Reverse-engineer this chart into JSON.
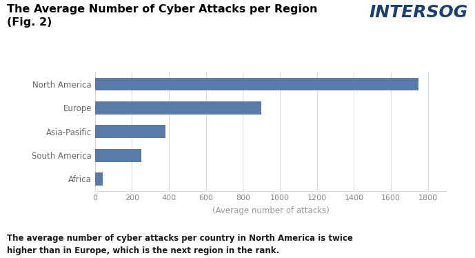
{
  "title_line1": "The Average Number of Cyber Attacks per Region",
  "title_line2": "(Fig. 2)",
  "categories": [
    "North America",
    "Europe",
    "Asia-Pasific",
    "South America",
    "Africa"
  ],
  "values": [
    1750,
    900,
    380,
    250,
    40
  ],
  "bar_color": "#5a7aa8",
  "xlabel": "(Average number of attacks)",
  "xlim": [
    0,
    1900
  ],
  "xticks": [
    0,
    200,
    400,
    600,
    800,
    1000,
    1200,
    1400,
    1600,
    1800
  ],
  "background_color": "#ffffff",
  "grid_color": "#d8d8d8",
  "footnote": "The average number of cyber attacks per country in North America is twice\nhigher than in Europe, which is the next region in the rank.",
  "logo_text": "INTERSOG",
  "logo_color": "#1c3f72",
  "title_fontsize": 11.5,
  "axis_label_fontsize": 8.5,
  "tick_fontsize": 8,
  "footnote_fontsize": 8.5,
  "category_fontsize": 8.5,
  "logo_fontsize": 18
}
